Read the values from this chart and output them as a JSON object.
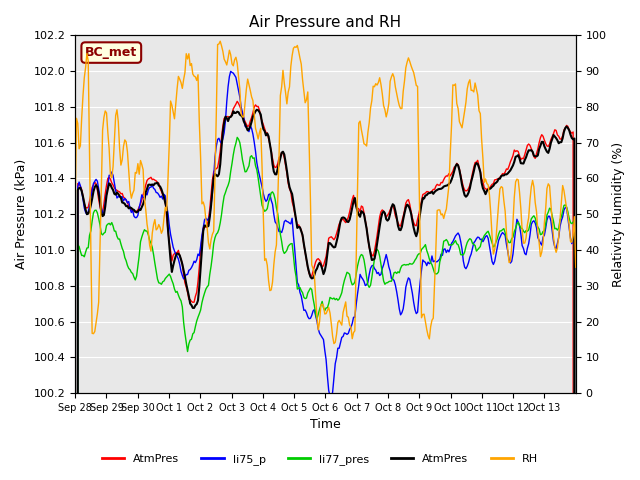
{
  "title": "Air Pressure and RH",
  "xlabel": "Time",
  "ylabel_left": "Air Pressure (kPa)",
  "ylabel_right": "Relativity Humidity (%)",
  "ylim_left": [
    100.2,
    102.2
  ],
  "ylim_right": [
    0,
    100
  ],
  "station_label": "BC_met",
  "x_tick_labels": [
    "Sep 28",
    "Sep 29",
    "Sep 30",
    "Oct 1",
    "Oct 2",
    "Oct 3",
    "Oct 4",
    "Oct 5",
    "Oct 6",
    "Oct 7",
    "Oct 8",
    "Oct 9",
    "Oct 10",
    "Oct 11",
    "Oct 12",
    "Oct 13"
  ],
  "line_colors": {
    "AtmPres_red": "#ff0000",
    "li75_p": "#0000ff",
    "li77_pres": "#00cc00",
    "AtmPres_black": "#000000",
    "RH": "#ffa500"
  },
  "legend_entries": [
    "AtmPres",
    "li75_p",
    "li77_pres",
    "AtmPres",
    "RH"
  ],
  "legend_colors": [
    "#ff0000",
    "#0000ff",
    "#00cc00",
    "#000000",
    "#ffa500"
  ],
  "background_color": "#e8e8e8",
  "fig_background": "#ffffff"
}
